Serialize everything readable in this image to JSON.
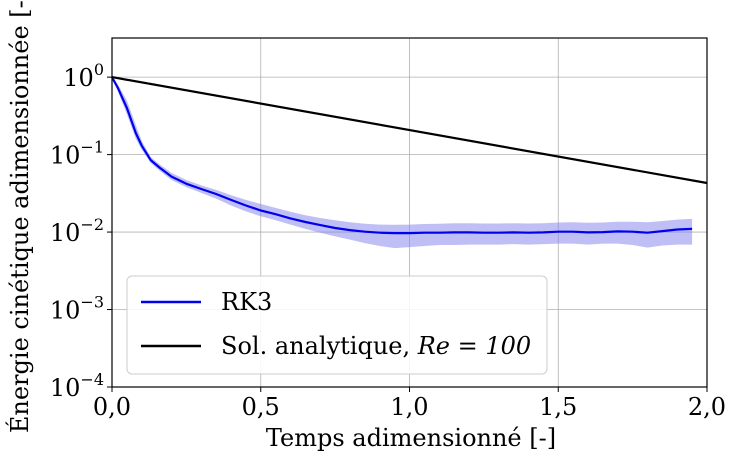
{
  "chart_data": {
    "type": "line",
    "xlabel": "Temps adimensionné [-]",
    "ylabel": "Énergie cinétique adimensionnée [-]",
    "xlim": [
      0,
      2.0
    ],
    "ylim": [
      0.0001,
      3.2
    ],
    "yscale": "log",
    "grid": true,
    "legend_position": "lower-left",
    "x_ticks": [
      0,
      0.5,
      1.0,
      1.5,
      2.0
    ],
    "x_tick_labels": [
      "0,0",
      "0,5",
      "1,0",
      "1,5",
      "2,0"
    ],
    "y_ticks": [
      0.0001,
      0.001,
      0.01,
      0.1,
      1
    ],
    "y_tick_labels": [
      {
        "base": "10",
        "exp": "−4"
      },
      {
        "base": "10",
        "exp": "−3"
      },
      {
        "base": "10",
        "exp": "−2"
      },
      {
        "base": "10",
        "exp": "−1"
      },
      {
        "base": "10",
        "exp": "0"
      }
    ],
    "series": [
      {
        "name": "RK3",
        "color": "#0000ee",
        "band_color": "#8080ee",
        "x": [
          0.0,
          0.02,
          0.05,
          0.08,
          0.1,
          0.13,
          0.16,
          0.2,
          0.25,
          0.3,
          0.35,
          0.4,
          0.45,
          0.5,
          0.55,
          0.6,
          0.65,
          0.7,
          0.75,
          0.8,
          0.85,
          0.9,
          0.95,
          1.0,
          1.05,
          1.1,
          1.15,
          1.2,
          1.25,
          1.3,
          1.35,
          1.4,
          1.45,
          1.5,
          1.55,
          1.6,
          1.65,
          1.7,
          1.75,
          1.8,
          1.85,
          1.9,
          1.95
        ],
        "values": [
          1.0,
          0.72,
          0.4,
          0.19,
          0.13,
          0.085,
          0.068,
          0.052,
          0.042,
          0.036,
          0.031,
          0.026,
          0.022,
          0.019,
          0.017,
          0.015,
          0.0135,
          0.0123,
          0.0113,
          0.0106,
          0.0101,
          0.0098,
          0.0097,
          0.0097,
          0.0098,
          0.0098,
          0.0099,
          0.0099,
          0.0098,
          0.0098,
          0.0099,
          0.0098,
          0.0099,
          0.0101,
          0.0101,
          0.0099,
          0.01,
          0.0102,
          0.0101,
          0.0098,
          0.0103,
          0.0108,
          0.011
        ],
        "lower": [
          1.0,
          0.65,
          0.33,
          0.16,
          0.115,
          0.078,
          0.062,
          0.047,
          0.038,
          0.032,
          0.027,
          0.022,
          0.0185,
          0.016,
          0.0142,
          0.0125,
          0.011,
          0.0098,
          0.0088,
          0.008,
          0.0072,
          0.0066,
          0.0062,
          0.0064,
          0.0066,
          0.0068,
          0.0068,
          0.0069,
          0.0069,
          0.0069,
          0.007,
          0.0069,
          0.007,
          0.0071,
          0.0071,
          0.0069,
          0.0071,
          0.0071,
          0.0068,
          0.0063,
          0.0067,
          0.0069,
          0.0069
        ],
        "upper": [
          1.0,
          0.8,
          0.5,
          0.24,
          0.15,
          0.093,
          0.075,
          0.058,
          0.047,
          0.04,
          0.035,
          0.03,
          0.026,
          0.023,
          0.0205,
          0.0183,
          0.0165,
          0.0152,
          0.0142,
          0.0134,
          0.0128,
          0.0125,
          0.0124,
          0.0125,
          0.0127,
          0.0128,
          0.013,
          0.013,
          0.0129,
          0.0129,
          0.013,
          0.0129,
          0.013,
          0.0133,
          0.0134,
          0.0132,
          0.0133,
          0.0136,
          0.0136,
          0.0134,
          0.0139,
          0.0145,
          0.0148
        ]
      },
      {
        "name": "Sol. analytique, ",
        "name_math": "Re = 100",
        "color": "#000000",
        "x": [
          0.0,
          2.0
        ],
        "values": [
          1.0,
          0.043
        ]
      }
    ]
  }
}
